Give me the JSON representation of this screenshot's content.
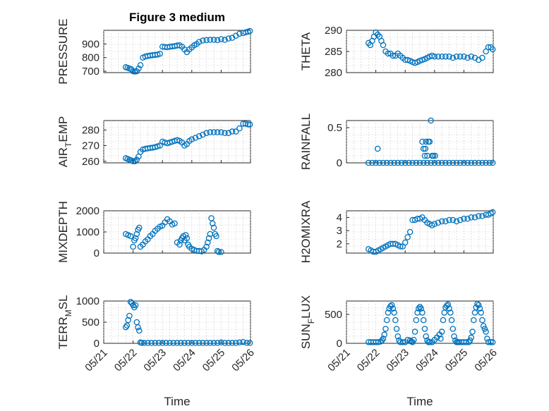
{
  "figure": {
    "title": "Figure 3 medium"
  },
  "colors": {
    "series": "#0072bd",
    "axis": "#262626",
    "grid": "#bdbdbd"
  },
  "chart_data": [
    {
      "type": "scatter",
      "name": "pressure",
      "ylabel": "PRESSURE",
      "title": "Figure 3 medium",
      "ylim": [
        690,
        1000
      ],
      "yticks": [
        700,
        800,
        900
      ],
      "ytick_labels": [
        "700",
        "800",
        "900"
      ],
      "xlim": [
        "05/21",
        "05/26"
      ],
      "xticks": [
        "05/21",
        "05/22",
        "05/23",
        "05/24",
        "05/25",
        "05/26"
      ],
      "show_xtick_labels": false,
      "grid": true,
      "x": [
        "05/21 18:00",
        "05/21 19:30",
        "05/21 21:00",
        "05/21 22:30",
        "05/22 00:00",
        "05/22 01:30",
        "05/22 03:00",
        "05/22 04:30",
        "05/22 06:00",
        "05/22 08:00",
        "05/22 10:00",
        "05/22 12:00",
        "05/22 14:00",
        "05/22 16:00",
        "05/22 18:00",
        "05/22 20:00",
        "05/22 22:00",
        "05/23 00:00",
        "05/23 02:00",
        "05/23 04:00",
        "05/23 06:00",
        "05/23 08:00",
        "05/23 10:00",
        "05/23 12:00",
        "05/23 14:00",
        "05/23 16:00",
        "05/23 18:00",
        "05/23 20:00",
        "05/23 22:00",
        "05/24 00:00",
        "05/24 02:00",
        "05/24 04:00",
        "05/24 06:00",
        "05/24 09:00",
        "05/24 12:00",
        "05/24 15:00",
        "05/24 18:00",
        "05/24 21:00",
        "05/25 00:00",
        "05/25 03:00",
        "05/25 06:00",
        "05/25 09:00",
        "05/25 12:00",
        "05/25 15:00",
        "05/25 18:00",
        "05/25 20:00",
        "05/25 22:00",
        "05/25 23:30"
      ],
      "y": [
        730,
        725,
        720,
        715,
        700,
        698,
        700,
        720,
        745,
        800,
        808,
        812,
        815,
        818,
        820,
        822,
        828,
        880,
        878,
        876,
        880,
        882,
        884,
        888,
        890,
        880,
        860,
        840,
        860,
        875,
        890,
        900,
        915,
        925,
        928,
        930,
        930,
        928,
        935,
        930,
        940,
        945,
        960,
        975,
        980,
        985,
        990,
        995
      ]
    },
    {
      "type": "scatter",
      "name": "theta",
      "ylabel": "THETA",
      "ylim": [
        280,
        290
      ],
      "yticks": [
        280,
        285,
        290
      ],
      "ytick_labels": [
        "280",
        "285",
        "290"
      ],
      "xlim": [
        "05/21",
        "05/26"
      ],
      "show_xtick_labels": false,
      "grid": true,
      "x": [
        "05/21 18:00",
        "05/21 19:30",
        "05/21 21:00",
        "05/21 22:30",
        "05/22 00:00",
        "05/22 01:30",
        "05/22 03:00",
        "05/22 04:30",
        "05/22 06:00",
        "05/22 08:00",
        "05/22 10:00",
        "05/22 12:00",
        "05/22 14:00",
        "05/22 16:00",
        "05/22 18:00",
        "05/22 20:00",
        "05/22 22:00",
        "05/23 00:00",
        "05/23 02:00",
        "05/23 04:00",
        "05/23 06:00",
        "05/23 08:00",
        "05/23 10:00",
        "05/23 12:00",
        "05/23 14:00",
        "05/23 16:00",
        "05/23 18:00",
        "05/23 20:00",
        "05/23 22:00",
        "05/24 00:00",
        "05/24 03:00",
        "05/24 06:00",
        "05/24 09:00",
        "05/24 12:00",
        "05/24 15:00",
        "05/24 18:00",
        "05/24 21:00",
        "05/25 00:00",
        "05/25 03:00",
        "05/25 06:00",
        "05/25 09:00",
        "05/25 12:00",
        "05/25 15:00",
        "05/25 18:00",
        "05/25 20:00",
        "05/25 22:00",
        "05/25 23:30"
      ],
      "y": [
        287,
        286.5,
        287.5,
        288.5,
        289.5,
        289,
        288.5,
        287.5,
        286.5,
        285,
        284.5,
        284.5,
        284,
        284,
        284.5,
        284,
        283.5,
        283,
        283,
        282.8,
        282.5,
        282.3,
        282.5,
        282.8,
        283,
        283.2,
        283.5,
        283.8,
        284,
        283.8,
        283.8,
        283.8,
        283.8,
        283.8,
        283.5,
        283.8,
        283.8,
        283.8,
        283.5,
        283.8,
        283.5,
        283,
        283.5,
        285,
        286,
        286,
        285.5
      ]
    },
    {
      "type": "scatter",
      "name": "air_temp",
      "ylabel": "AIR_TEMP",
      "ylabel_display": [
        "AIR",
        "T",
        "EMP"
      ],
      "ylim": [
        259,
        286
      ],
      "yticks": [
        260,
        270,
        280
      ],
      "ytick_labels": [
        "260",
        "270",
        "280"
      ],
      "xlim": [
        "05/21",
        "05/26"
      ],
      "show_xtick_labels": false,
      "grid": true,
      "x": [
        "05/21 18:00",
        "05/21 19:30",
        "05/21 21:00",
        "05/21 22:30",
        "05/22 00:00",
        "05/22 01:30",
        "05/22 03:00",
        "05/22 04:30",
        "05/22 06:00",
        "05/22 08:00",
        "05/22 10:00",
        "05/22 12:00",
        "05/22 14:00",
        "05/22 16:00",
        "05/22 18:00",
        "05/22 20:00",
        "05/22 22:00",
        "05/23 00:00",
        "05/23 02:00",
        "05/23 04:00",
        "05/23 06:00",
        "05/23 08:00",
        "05/23 10:00",
        "05/23 12:00",
        "05/23 14:00",
        "05/23 16:00",
        "05/23 18:00",
        "05/23 20:00",
        "05/23 22:00",
        "05/24 00:00",
        "05/24 03:00",
        "05/24 06:00",
        "05/24 09:00",
        "05/24 12:00",
        "05/24 15:00",
        "05/24 18:00",
        "05/24 21:00",
        "05/25 00:00",
        "05/25 03:00",
        "05/25 06:00",
        "05/25 09:00",
        "05/25 12:00",
        "05/25 15:00",
        "05/25 18:00",
        "05/25 20:00",
        "05/25 22:00",
        "05/25 23:30"
      ],
      "y": [
        262,
        261.5,
        261,
        260.5,
        260,
        260,
        261,
        263,
        266,
        267.5,
        268,
        268.2,
        268.5,
        268.7,
        269,
        269.5,
        270,
        272.5,
        272,
        271.5,
        272,
        272.5,
        273,
        273.5,
        273,
        272,
        270,
        271,
        273,
        274,
        275,
        276,
        277,
        278,
        278.5,
        278.5,
        278.5,
        278.5,
        278,
        278,
        279,
        279,
        281,
        284,
        284,
        283.5,
        283.5
      ]
    },
    {
      "type": "scatter",
      "name": "rainfall",
      "ylabel": "RAINFALL",
      "ylim": [
        0,
        0.6
      ],
      "yticks": [
        0,
        0.5
      ],
      "ytick_labels": [
        "0",
        "0.5"
      ],
      "xlim": [
        "05/21",
        "05/26"
      ],
      "show_xtick_labels": false,
      "grid": true,
      "x": [
        "05/21 18:00",
        "05/21 21:00",
        "05/22 00:00",
        "05/22 03:00",
        "05/22 06:00",
        "05/22 09:00",
        "05/22 12:00",
        "05/22 15:00",
        "05/22 18:00",
        "05/22 21:00",
        "05/23 00:00",
        "05/23 03:00",
        "05/23 06:00",
        "05/23 09:00",
        "05/23 12:00",
        "05/23 15:00",
        "05/23 18:00",
        "05/23 21:00",
        "05/24 00:00",
        "05/24 03:00",
        "05/24 06:00",
        "05/24 09:00",
        "05/24 12:00",
        "05/24 15:00",
        "05/24 18:00",
        "05/24 21:00",
        "05/25 00:00",
        "05/25 03:00",
        "05/25 06:00",
        "05/25 09:00",
        "05/25 12:00",
        "05/25 15:00",
        "05/25 18:00",
        "05/25 21:00",
        "05/25 23:30",
        "05/22 01:30",
        "05/23 14:00",
        "05/23 15:00",
        "05/23 16:00",
        "05/23 17:00",
        "05/23 16:30",
        "05/23 18:00",
        "05/23 19:00",
        "05/23 20:00",
        "05/23 21:00",
        "05/23 22:00",
        "05/23 23:00",
        "05/24 00:30"
      ],
      "y": [
        0,
        0,
        0,
        0,
        0,
        0,
        0,
        0,
        0,
        0,
        0,
        0,
        0,
        0,
        0,
        0,
        0,
        0,
        0,
        0,
        0,
        0,
        0,
        0,
        0,
        0,
        0,
        0,
        0,
        0,
        0,
        0,
        0,
        0,
        0,
        0.2,
        0.3,
        0.2,
        0.1,
        0.3,
        0.2,
        0.1,
        0.3,
        0.3,
        0.6,
        0.1,
        0.1,
        0.1
      ]
    },
    {
      "type": "scatter",
      "name": "mixdepth",
      "ylabel": "MIXDEPTH",
      "ylim": [
        0,
        2000
      ],
      "yticks": [
        0,
        1000,
        2000
      ],
      "ytick_labels": [
        "0",
        "1000",
        "2000"
      ],
      "xlim": [
        "05/21",
        "05/26"
      ],
      "show_xtick_labels": false,
      "grid": true,
      "x": [
        "05/21 18:00",
        "05/21 20:00",
        "05/21 22:00",
        "05/22 00:00",
        "05/22 01:00",
        "05/22 02:00",
        "05/22 03:00",
        "05/22 04:00",
        "05/22 05:00",
        "05/22 06:00",
        "05/22 08:00",
        "05/22 10:00",
        "05/22 12:00",
        "05/22 14:00",
        "05/22 16:00",
        "05/22 18:00",
        "05/22 20:00",
        "05/22 22:00",
        "05/23 00:00",
        "05/23 02:00",
        "05/23 04:00",
        "05/23 06:00",
        "05/23 08:00",
        "05/23 10:00",
        "05/23 12:00",
        "05/23 14:00",
        "05/23 15:00",
        "05/23 16:00",
        "05/23 17:00",
        "05/23 18:00",
        "05/23 19:00",
        "05/23 20:00",
        "05/23 21:00",
        "05/23 22:00",
        "05/24 00:00",
        "05/24 02:00",
        "05/24 04:00",
        "05/24 06:00",
        "05/24 08:00",
        "05/24 10:00",
        "05/24 12:00",
        "05/24 13:00",
        "05/24 14:00",
        "05/24 15:00",
        "05/24 16:00",
        "05/24 17:00",
        "05/24 18:00",
        "05/24 19:00",
        "05/24 20:00",
        "05/24 21:00",
        "05/24 22:00",
        "05/25 00:00"
      ],
      "y": [
        900,
        850,
        800,
        300,
        600,
        700,
        900,
        1100,
        1200,
        300,
        400,
        550,
        650,
        800,
        900,
        1050,
        1150,
        1250,
        1300,
        1450,
        1600,
        1500,
        1350,
        1400,
        500,
        400,
        600,
        700,
        800,
        600,
        850,
        700,
        400,
        300,
        200,
        150,
        100,
        100,
        80,
        150,
        300,
        500,
        700,
        900,
        1650,
        1400,
        1200,
        900,
        800,
        100,
        50,
        50
      ]
    },
    {
      "type": "scatter",
      "name": "h2omixra",
      "ylabel": "H2OMIXRA",
      "ylim": [
        1.3,
        4.5
      ],
      "yticks": [
        2,
        3,
        4
      ],
      "ytick_labels": [
        "2",
        "3",
        "4"
      ],
      "xlim": [
        "05/21",
        "05/26"
      ],
      "show_xtick_labels": false,
      "grid": true,
      "x": [
        "05/21 18:00",
        "05/21 20:00",
        "05/21 22:00",
        "05/22 00:00",
        "05/22 02:00",
        "05/22 04:00",
        "05/22 06:00",
        "05/22 08:00",
        "05/22 10:00",
        "05/22 12:00",
        "05/22 14:00",
        "05/22 16:00",
        "05/22 18:00",
        "05/22 20:00",
        "05/22 22:00",
        "05/23 00:00",
        "05/23 02:00",
        "05/23 04:00",
        "05/23 06:00",
        "05/23 08:00",
        "05/23 10:00",
        "05/23 12:00",
        "05/23 14:00",
        "05/23 16:00",
        "05/23 18:00",
        "05/23 20:00",
        "05/23 22:00",
        "05/24 00:00",
        "05/24 03:00",
        "05/24 06:00",
        "05/24 09:00",
        "05/24 12:00",
        "05/24 15:00",
        "05/24 18:00",
        "05/24 21:00",
        "05/25 00:00",
        "05/25 03:00",
        "05/25 06:00",
        "05/25 09:00",
        "05/25 12:00",
        "05/25 15:00",
        "05/25 18:00",
        "05/25 20:00",
        "05/25 22:00",
        "05/25 23:30"
      ],
      "y": [
        1.6,
        1.5,
        1.4,
        1.4,
        1.5,
        1.6,
        1.7,
        1.8,
        1.9,
        2.0,
        2.0,
        2.0,
        1.9,
        1.8,
        1.8,
        2.1,
        2.5,
        2.9,
        3.8,
        3.8,
        3.9,
        3.9,
        4.0,
        3.8,
        3.6,
        3.5,
        3.4,
        3.5,
        3.6,
        3.7,
        3.7,
        3.8,
        3.8,
        3.7,
        3.8,
        3.9,
        3.9,
        4.0,
        4.0,
        4.1,
        4.1,
        4.2,
        4.2,
        4.3,
        4.4
      ]
    },
    {
      "type": "scatter",
      "name": "terr_msl",
      "ylabel": "TERR_MSL",
      "ylabel_display": [
        "TERR",
        "M",
        "SL"
      ],
      "ylim": [
        0,
        1000
      ],
      "yticks": [
        0,
        500,
        1000
      ],
      "ytick_labels": [
        "0",
        "500",
        "1000"
      ],
      "xlim": [
        "05/21",
        "05/26"
      ],
      "xticks": [
        "05/21",
        "05/22",
        "05/23",
        "05/24",
        "05/25",
        "05/26"
      ],
      "xtick_labels": [
        "05/21",
        "05/22",
        "05/23",
        "05/24",
        "05/25",
        "05/26"
      ],
      "show_xtick_labels": true,
      "xlabel": "Time",
      "grid": true,
      "x": [
        "05/21 18:00",
        "05/21 19:00",
        "05/21 20:00",
        "05/21 21:00",
        "05/21 22:00",
        "05/21 23:00",
        "05/22 00:00",
        "05/22 01:00",
        "05/22 02:00",
        "05/22 03:00",
        "05/22 04:00",
        "05/22 05:00",
        "05/22 06:00",
        "05/22 07:00",
        "05/22 09:00",
        "05/22 12:00",
        "05/22 15:00",
        "05/22 18:00",
        "05/22 21:00",
        "05/23 00:00",
        "05/23 03:00",
        "05/23 06:00",
        "05/23 09:00",
        "05/23 12:00",
        "05/23 15:00",
        "05/23 18:00",
        "05/23 21:00",
        "05/24 00:00",
        "05/24 03:00",
        "05/24 06:00",
        "05/24 09:00",
        "05/24 12:00",
        "05/24 15:00",
        "05/24 18:00",
        "05/24 21:00",
        "05/25 00:00",
        "05/25 03:00",
        "05/25 06:00",
        "05/25 09:00",
        "05/25 12:00",
        "05/25 15:00",
        "05/25 18:00",
        "05/25 21:00",
        "05/25 23:30"
      ],
      "y": [
        380,
        420,
        550,
        650,
        980,
        950,
        900,
        850,
        900,
        500,
        380,
        300,
        20,
        10,
        10,
        10,
        10,
        10,
        10,
        10,
        10,
        10,
        10,
        10,
        10,
        10,
        10,
        10,
        10,
        10,
        10,
        10,
        10,
        10,
        10,
        20,
        10,
        10,
        10,
        10,
        20,
        30,
        10,
        10
      ]
    },
    {
      "type": "scatter",
      "name": "sun_flux",
      "ylabel": "SUN_FLUX",
      "ylabel_display": [
        "SUN",
        "F",
        "LUX"
      ],
      "ylim": [
        0,
        730
      ],
      "yticks": [
        0,
        500
      ],
      "ytick_labels": [
        "0",
        "500"
      ],
      "xlim": [
        "05/21",
        "05/26"
      ],
      "xticks": [
        "05/21",
        "05/22",
        "05/23",
        "05/24",
        "05/25",
        "05/26"
      ],
      "xtick_labels": [
        "05/21",
        "05/22",
        "05/23",
        "05/24",
        "05/25",
        "05/26"
      ],
      "show_xtick_labels": true,
      "xlabel": "Time",
      "grid": true,
      "x": [
        "05/21 18:00",
        "05/21 20:00",
        "05/21 22:00",
        "05/22 00:00",
        "05/22 02:00",
        "05/22 04:00",
        "05/22 05:00",
        "05/22 06:00",
        "05/22 07:00",
        "05/22 08:00",
        "05/22 09:00",
        "05/22 10:00",
        "05/22 11:00",
        "05/22 12:00",
        "05/22 13:00",
        "05/22 14:00",
        "05/22 15:00",
        "05/22 16:00",
        "05/22 17:00",
        "05/22 18:00",
        "05/22 19:00",
        "05/22 20:00",
        "05/22 22:00",
        "05/23 00:00",
        "05/23 02:00",
        "05/23 04:00",
        "05/23 05:00",
        "05/23 06:00",
        "05/23 07:00",
        "05/23 08:00",
        "05/23 09:00",
        "05/23 10:00",
        "05/23 11:00",
        "05/23 12:00",
        "05/23 13:00",
        "05/23 14:00",
        "05/23 15:00",
        "05/23 16:00",
        "05/23 17:00",
        "05/23 18:00",
        "05/23 19:00",
        "05/23 20:00",
        "05/23 22:00",
        "05/24 00:00",
        "05/24 02:00",
        "05/24 04:00",
        "05/24 05:00",
        "05/24 06:00",
        "05/24 07:00",
        "05/24 08:00",
        "05/24 09:00",
        "05/24 10:00",
        "05/24 11:00",
        "05/24 12:00",
        "05/24 13:00",
        "05/24 14:00",
        "05/24 15:00",
        "05/24 16:00",
        "05/24 17:00",
        "05/24 18:00",
        "05/24 19:00",
        "05/24 20:00",
        "05/24 22:00",
        "05/25 00:00",
        "05/25 02:00",
        "05/25 04:00",
        "05/25 05:00",
        "05/25 06:00",
        "05/25 07:00",
        "05/25 08:00",
        "05/25 09:00",
        "05/25 10:00",
        "05/25 11:00",
        "05/25 12:00",
        "05/25 13:00",
        "05/25 14:00",
        "05/25 15:00",
        "05/25 16:00",
        "05/25 17:00",
        "05/25 18:00",
        "05/25 19:00",
        "05/25 20:00",
        "05/25 22:00",
        "05/25 23:30"
      ],
      "y": [
        20,
        20,
        20,
        20,
        20,
        30,
        50,
        80,
        150,
        250,
        400,
        530,
        600,
        640,
        660,
        600,
        530,
        400,
        250,
        120,
        50,
        20,
        20,
        20,
        60,
        50,
        30,
        20,
        60,
        200,
        400,
        530,
        600,
        630,
        600,
        530,
        400,
        250,
        120,
        50,
        20,
        20,
        20,
        60,
        100,
        150,
        80,
        200,
        400,
        530,
        620,
        650,
        670,
        600,
        530,
        400,
        250,
        120,
        50,
        20,
        20,
        20,
        20,
        20,
        20,
        20,
        50,
        100,
        200,
        400,
        530,
        620,
        680,
        660,
        600,
        530,
        400,
        300,
        250,
        200,
        80,
        20,
        20,
        20
      ]
    }
  ]
}
